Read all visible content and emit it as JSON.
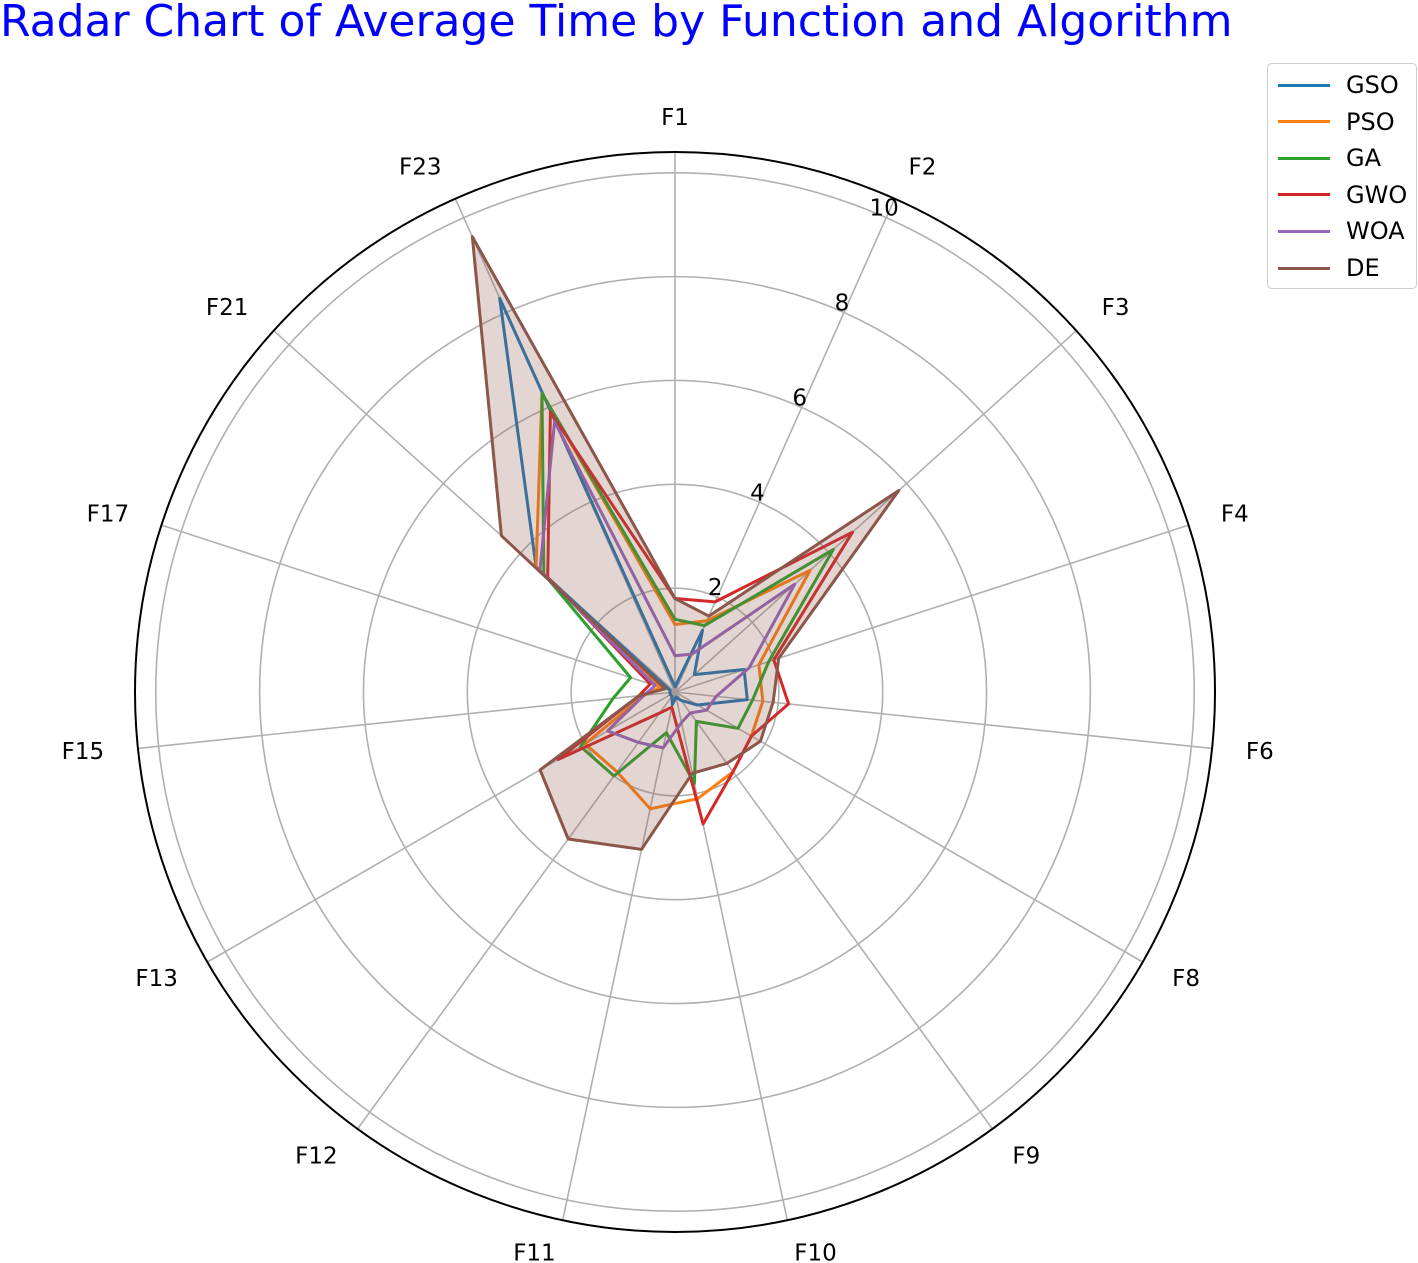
{
  "chart_data": {
    "type": "radar",
    "title": "Radar Chart of Average Time by Function and Algorithm",
    "title_color": "#0000ff",
    "categories": [
      "F1",
      "F2",
      "F3",
      "F4",
      "F6",
      "F8",
      "F9",
      "F10",
      "F11",
      "F12",
      "F13",
      "F15",
      "F17",
      "F21",
      "F23"
    ],
    "rlim": [
      0,
      10.4
    ],
    "r_ticks": [
      2,
      4,
      6,
      8,
      10
    ],
    "r_tick_labels": [
      "2",
      "4",
      "6",
      "8",
      "10"
    ],
    "grid": true,
    "legend_position": "top-right",
    "series": [
      {
        "name": "GSO",
        "color": "#1f77b4",
        "fill": false,
        "values": [
          0.1,
          1.3,
          0.5,
          1.4,
          1.4,
          0.5,
          0.2,
          0.1,
          0.25,
          0.1,
          0.1,
          0.1,
          0.1,
          3.6,
          8.3
        ]
      },
      {
        "name": "PSO",
        "color": "#ff7f0e",
        "fill": false,
        "values": [
          1.3,
          1.5,
          3.5,
          1.7,
          1.7,
          1.7,
          1.9,
          2.1,
          2.3,
          1.9,
          2.0,
          0.6,
          0.3,
          3.6,
          6.3
        ]
      },
      {
        "name": "GA",
        "color": "#2ca02c",
        "fill": false,
        "values": [
          1.4,
          1.4,
          4.1,
          1.9,
          1.5,
          1.4,
          0.7,
          1.8,
          0.8,
          2.0,
          2.1,
          1.2,
          0.9,
          3.4,
          6.3
        ]
      },
      {
        "name": "GWO",
        "color": "#d62728",
        "fill": false,
        "values": [
          1.8,
          1.9,
          4.6,
          2.0,
          2.2,
          1.7,
          1.9,
          2.6,
          0.3,
          0.5,
          2.6,
          0.7,
          0.5,
          3.3,
          5.9
        ]
      },
      {
        "name": "WOA",
        "color": "#9467bd",
        "fill": false,
        "values": [
          0.7,
          0.8,
          3.1,
          1.5,
          0.8,
          0.7,
          0.5,
          0.6,
          1.1,
          1.2,
          1.5,
          0.6,
          0.4,
          3.5,
          5.7
        ]
      },
      {
        "name": "DE",
        "color": "#8c564b",
        "fill": true,
        "values": [
          1.8,
          1.6,
          5.8,
          2.1,
          1.9,
          1.9,
          1.7,
          1.6,
          3.1,
          3.5,
          3.0,
          0.7,
          0.2,
          4.5,
          9.6
        ]
      }
    ]
  }
}
